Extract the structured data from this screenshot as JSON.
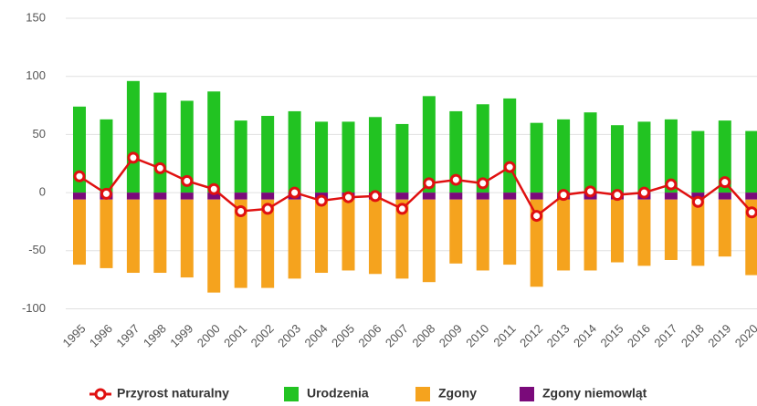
{
  "chart_data": {
    "type": "bar",
    "categories": [
      "1995",
      "1996",
      "1997",
      "1998",
      "1999",
      "2000",
      "2001",
      "2002",
      "2003",
      "2004",
      "2005",
      "2006",
      "2007",
      "2008",
      "2009",
      "2010",
      "2011",
      "2012",
      "2013",
      "2014",
      "2015",
      "2016",
      "2017",
      "2018",
      "2019",
      "2020"
    ],
    "series": [
      {
        "name": "Przyrost naturalny",
        "type": "line",
        "color": "#e01010",
        "values": [
          14,
          -1,
          30,
          21,
          10,
          3,
          -16,
          -14,
          0,
          -7,
          -4,
          -3,
          -14,
          8,
          11,
          8,
          22,
          -20,
          -2,
          1,
          -2,
          0,
          7,
          -8,
          9,
          -17
        ]
      },
      {
        "name": "Urodzenia",
        "color": "#22c322",
        "values": [
          74,
          63,
          96,
          86,
          79,
          87,
          62,
          66,
          70,
          61,
          61,
          65,
          59,
          83,
          70,
          76,
          81,
          60,
          63,
          69,
          58,
          61,
          63,
          53,
          62,
          53
        ]
      },
      {
        "name": "Zgony",
        "color": "#f5a31e",
        "values": [
          -56,
          -59,
          -63,
          -63,
          -67,
          -80,
          -76,
          -76,
          -68,
          -63,
          -61,
          -64,
          -68,
          -71,
          -55,
          -61,
          -56,
          -75,
          -61,
          -61,
          -54,
          -57,
          -52,
          -57,
          -49,
          -65
        ]
      },
      {
        "name": "Zgony niemowląt",
        "color": "#7a0a7a",
        "values": [
          -6,
          -6,
          -6,
          -6,
          -6,
          -6,
          -6,
          -6,
          -6,
          -6,
          -6,
          -6,
          -6,
          -6,
          -6,
          -6,
          -6,
          -6,
          -6,
          -6,
          -6,
          -6,
          -6,
          -6,
          -6,
          -6
        ]
      }
    ],
    "ylim": [
      -100,
      150
    ],
    "yticks": [
      -100,
      -50,
      0,
      50,
      100,
      150
    ],
    "grid": true,
    "legend": "bottom"
  }
}
